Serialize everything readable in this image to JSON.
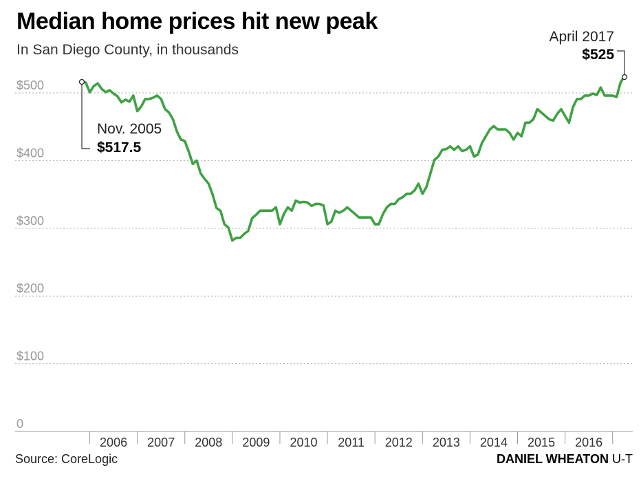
{
  "header": {
    "title": "Median home prices hit new peak",
    "subtitle": "In San Diego County, in thousands"
  },
  "footer": {
    "source": "Source: CoreLogic",
    "credit_name": "DANIEL WHEATON",
    "credit_org": "U-T"
  },
  "colors": {
    "line": "#3fa143",
    "grid": "#aaaaaa",
    "axis_label": "#999999"
  },
  "chart_data": {
    "type": "line",
    "title": "Median home prices hit new peak",
    "subtitle": "In San Diego County, in thousands",
    "ylim": [
      0,
      525
    ],
    "y_ticks": [
      {
        "value": 0,
        "label": "0"
      },
      {
        "value": 100,
        "label": "$100"
      },
      {
        "value": 200,
        "label": "$200"
      },
      {
        "value": 300,
        "label": "$300"
      },
      {
        "value": 400,
        "label": "$400"
      },
      {
        "value": 500,
        "label": "$500"
      }
    ],
    "x_labels": [
      "2006",
      "2007",
      "2008",
      "2009",
      "2010",
      "2011",
      "2012",
      "2013",
      "2014",
      "2015",
      "2016"
    ],
    "grid": "horizontal dotted",
    "series": [
      {
        "start": "2005-11",
        "frequency": "monthly",
        "values": [
          517.5,
          515,
          501,
          510,
          514,
          506,
          501,
          504,
          499,
          495,
          486,
          490,
          487,
          496,
          473,
          480,
          491,
          491,
          493,
          496,
          491,
          476,
          471,
          461,
          443,
          431,
          429,
          413,
          395,
          400,
          381,
          373,
          366,
          350,
          330,
          326,
          306,
          301,
          282,
          286,
          286,
          292,
          296,
          315,
          320,
          326,
          326,
          326,
          326,
          331,
          306,
          321,
          331,
          326,
          341,
          338,
          339,
          338,
          333,
          336,
          336,
          334,
          306,
          310,
          326,
          323,
          326,
          331,
          326,
          321,
          316,
          316,
          316,
          316,
          306,
          306,
          321,
          331,
          336,
          336,
          343,
          346,
          351,
          351,
          356,
          366,
          351,
          361,
          381,
          401,
          406,
          416,
          417,
          421,
          416,
          421,
          414,
          416,
          421,
          406,
          409,
          426,
          436,
          446,
          451,
          446,
          446,
          446,
          441,
          431,
          441,
          436,
          456,
          456,
          461,
          476,
          471,
          466,
          461,
          459,
          469,
          476,
          466,
          456,
          479,
          491,
          491,
          496,
          496,
          499,
          497,
          508,
          496,
          496,
          496,
          494,
          515,
          525
        ]
      }
    ],
    "annotations": [
      {
        "date": "Nov. 2005",
        "value": "$517.5"
      },
      {
        "date": "April 2017",
        "value": "$525"
      }
    ]
  }
}
